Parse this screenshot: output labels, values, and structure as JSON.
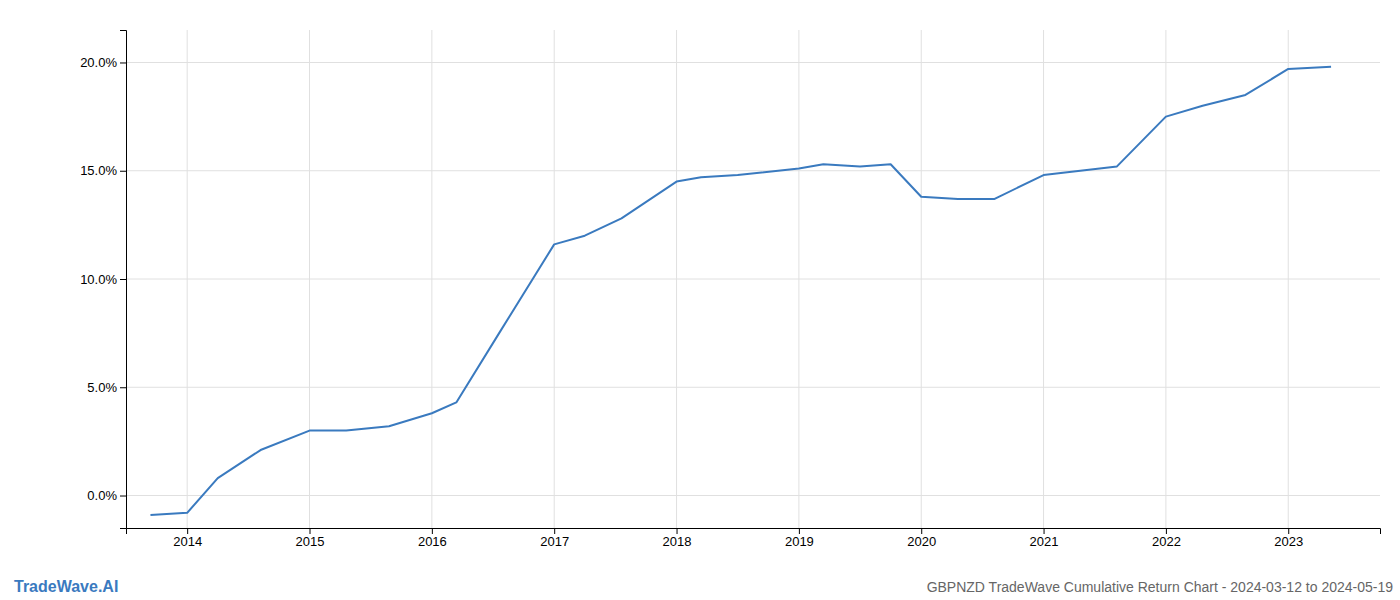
{
  "chart_data": {
    "type": "line",
    "title": "GBPNZD TradeWave Cumulative Return Chart - 2024-03-12 to 2024-05-19",
    "annotations": [
      "TradeWave.AI"
    ],
    "x": [
      2013.7,
      2014.0,
      2014.25,
      2014.6,
      2015.0,
      2015.3,
      2015.65,
      2016.0,
      2016.2,
      2016.55,
      2017.0,
      2017.25,
      2017.55,
      2018.0,
      2018.2,
      2018.5,
      2019.0,
      2019.2,
      2019.5,
      2019.75,
      2020.0,
      2020.3,
      2020.6,
      2021.0,
      2021.3,
      2021.6,
      2022.0,
      2022.3,
      2022.65,
      2023.0,
      2023.35
    ],
    "values": [
      -0.009,
      -0.008,
      0.008,
      0.021,
      0.03,
      0.03,
      0.032,
      0.038,
      0.043,
      0.075,
      0.116,
      0.12,
      0.128,
      0.145,
      0.147,
      0.148,
      0.151,
      0.153,
      0.152,
      0.153,
      0.138,
      0.137,
      0.137,
      0.148,
      0.15,
      0.152,
      0.175,
      0.18,
      0.185,
      0.197,
      0.198
    ],
    "color": "#3a7abf",
    "xlim": [
      2013.5,
      2023.75
    ],
    "ylim": [
      -0.015,
      0.215
    ],
    "xticks": [
      2014,
      2015,
      2016,
      2017,
      2018,
      2019,
      2020,
      2021,
      2022,
      2023
    ],
    "yticks": [
      {
        "value": 0.0,
        "label": "0.0%"
      },
      {
        "value": 0.05,
        "label": "5.0%"
      },
      {
        "value": 0.1,
        "label": "10.0%"
      },
      {
        "value": 0.15,
        "label": "15.0%"
      },
      {
        "value": 0.2,
        "label": "20.0%"
      }
    ],
    "grid": true
  }
}
